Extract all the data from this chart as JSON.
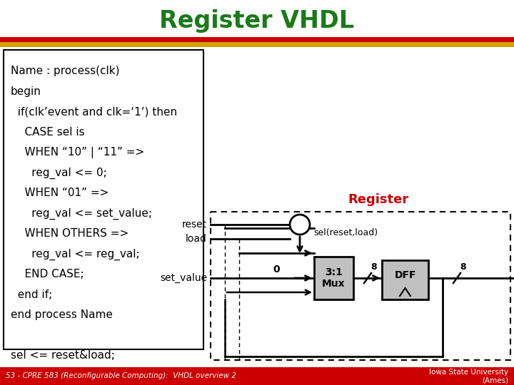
{
  "title": "Register VHDL",
  "title_color": "#1a7a1a",
  "title_fontsize": 24,
  "bg_color": "#ffffff",
  "footer_bg": "#cc0000",
  "footer_left": "53 - CPRE 583 (Reconfigurable Computing):  VHDL overview 2",
  "footer_right": "Iowa State University\n(Ames)",
  "code_lines": [
    "Name : process(clk)",
    "begin",
    "  if(clk’event and clk=‘1’) then",
    "    CASE sel is",
    "    WHEN “10” | “11” =>",
    "      reg_val <= 0;",
    "    WHEN “01” =>",
    "      reg_val <= set_value;",
    "    WHEN OTHERS =>",
    "      reg_val <= reg_val;",
    "    END CASE;",
    "  end if;",
    "end process Name",
    "",
    "sel <= reset&load;"
  ],
  "register_label": "Register",
  "register_label_color": "#cc0000"
}
